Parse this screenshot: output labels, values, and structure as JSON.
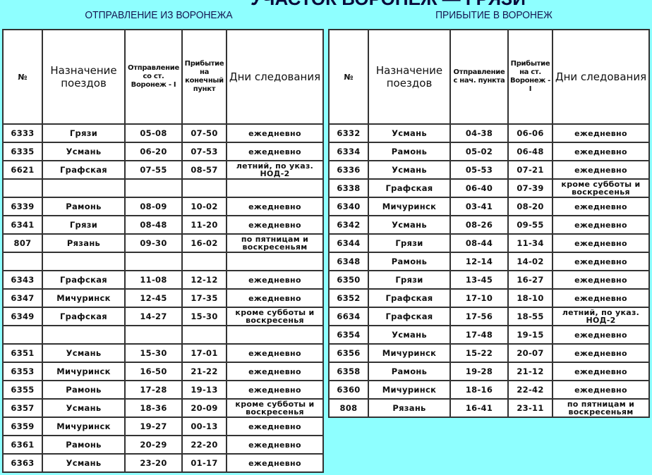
{
  "title": "УЧАСТОК ВОРОНЕЖ — ГРЯЗИ",
  "departure": {
    "heading": "ОТПРАВЛЕНИЕ ИЗ ВОРОНЕЖА",
    "columns": [
      "№",
      "Назначение поездов",
      "Отправление со ст. Воронеж - I",
      "Прибытие на конечный пункт",
      "Дни следования"
    ],
    "rows": [
      [
        "6333",
        "Грязи",
        "05-08",
        "07-50",
        "ежедневно"
      ],
      [
        "6335",
        "Усмань",
        "06-20",
        "07-53",
        "ежедневно"
      ],
      [
        "6621",
        "Графская",
        "07-55",
        "08-57",
        "летний, по указ. НОД-2"
      ],
      [
        "",
        "",
        "",
        "",
        ""
      ],
      [
        "6339",
        "Рамонь",
        "08-09",
        "10-02",
        "ежедневно"
      ],
      [
        "6341",
        "Грязи",
        "08-48",
        "11-20",
        "ежедневно"
      ],
      [
        "807",
        "Рязань",
        "09-30",
        "16-02",
        "по пятницам и воскресеньям"
      ],
      [
        "",
        "",
        "",
        "",
        ""
      ],
      [
        "6343",
        "Графская",
        "11-08",
        "12-12",
        "ежедневно"
      ],
      [
        "6347",
        "Мичуринск",
        "12-45",
        "17-35",
        "ежедневно"
      ],
      [
        "6349",
        "Графская",
        "14-27",
        "15-30",
        "кроме субботы и воскресенья"
      ],
      [
        "",
        "",
        "",
        "",
        ""
      ],
      [
        "6351",
        "Усмань",
        "15-30",
        "17-01",
        "ежедневно"
      ],
      [
        "6353",
        "Мичуринск",
        "16-50",
        "21-22",
        "ежедневно"
      ],
      [
        "6355",
        "Рамонь",
        "17-28",
        "19-13",
        "ежедневно"
      ],
      [
        "6357",
        "Усмань",
        "18-36",
        "20-09",
        "кроме субботы и воскресенья"
      ],
      [
        "6359",
        "Мичуринск",
        "19-27",
        "00-13",
        "ежедневно"
      ],
      [
        "6361",
        "Рамонь",
        "20-29",
        "22-20",
        "ежедневно"
      ],
      [
        "6363",
        "Усмань",
        "23-20",
        "01-17",
        "ежедневно"
      ]
    ]
  },
  "arrival": {
    "heading": "ПРИБЫТИЕ В ВОРОНЕЖ",
    "columns": [
      "№",
      "Назначение поездов",
      "Отправление с нач. пункта",
      "Прибытие на ст. Воронеж - I",
      "Дни следования"
    ],
    "rows": [
      [
        "6332",
        "Усмань",
        "04-38",
        "06-06",
        "ежедневно"
      ],
      [
        "6334",
        "Рамонь",
        "05-02",
        "06-48",
        "ежедневно"
      ],
      [
        "6336",
        "Усмань",
        "05-53",
        "07-21",
        "ежедневно"
      ],
      [
        "6338",
        "Графская",
        "06-40",
        "07-39",
        "кроме субботы и воскресенья"
      ],
      [
        "6340",
        "Мичуринск",
        "03-41",
        "08-20",
        "ежедневно"
      ],
      [
        "6342",
        "Усмань",
        "08-26",
        "09-55",
        "ежедневно"
      ],
      [
        "6344",
        "Грязи",
        "08-44",
        "11-34",
        "ежедневно"
      ],
      [
        "6348",
        "Рамонь",
        "12-14",
        "14-02",
        "ежедневно"
      ],
      [
        "6350",
        "Грязи",
        "13-45",
        "16-27",
        "ежедневно"
      ],
      [
        "6352",
        "Графская",
        "17-10",
        "18-10",
        "ежедневно"
      ],
      [
        "6634",
        "Графская",
        "17-56",
        "18-55",
        "летний, по указ. НОД-2"
      ],
      [
        "6354",
        "Усмань",
        "17-48",
        "19-15",
        "ежедневно"
      ],
      [
        "6356",
        "Мичуринск",
        "15-22",
        "20-07",
        "ежедневно"
      ],
      [
        "6358",
        "Рамонь",
        "19-28",
        "21-12",
        "ежедневно"
      ],
      [
        "6360",
        "Мичуринск",
        "18-16",
        "22-42",
        "ежедневно"
      ],
      [
        "808",
        "Рязань",
        "16-41",
        "23-11",
        "по пятницам и воскресеньям"
      ]
    ]
  }
}
